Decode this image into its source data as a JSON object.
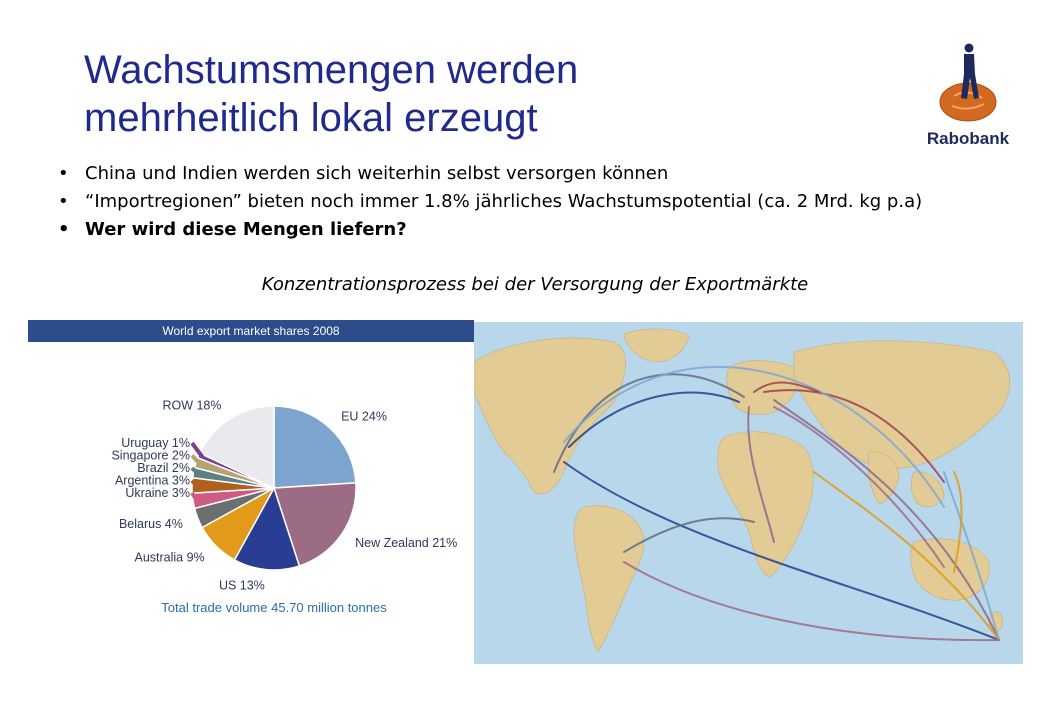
{
  "slide": {
    "title_lines": [
      "Wachstumsmengen werden",
      "mehrheitlich lokal erzeugt"
    ],
    "logo_text": "Rabobank",
    "bullets": [
      {
        "text": "China und Indien werden sich weiterhin selbst versorgen können"
      },
      {
        "text": "“Importregionen” bieten noch immer 1.8% jährliches Wachstumspotential (ca. 2 Mrd. kg p.a)"
      },
      {
        "text": "Wer wird diese Mengen liefern?"
      }
    ],
    "subline": "Konzentrationsprozess bei der Versorgung der Exportmärkte"
  },
  "chart_data": {
    "type": "pie",
    "title": "World export market shares 2008",
    "note": "Total trade volume 45.70 million tonnes",
    "unit": "%",
    "slices": [
      {
        "label": "EU",
        "value": 24,
        "display": "EU 24%",
        "color": "#7ca4cf"
      },
      {
        "label": "New Zealand",
        "value": 21,
        "display": "New Zealand 21%",
        "color": "#9c6c85"
      },
      {
        "label": "US",
        "value": 13,
        "display": "US 13%",
        "color": "#283d93"
      },
      {
        "label": "Australia",
        "value": 9,
        "display": "Australia 9%",
        "color": "#e19a19"
      },
      {
        "label": "Belarus",
        "value": 4,
        "display": "Belarus 4%",
        "color": "#6c6e70"
      },
      {
        "label": "Ukraine",
        "value": 3,
        "display": "Ukraine 3%",
        "color": "#cf5b82"
      },
      {
        "label": "Argentina",
        "value": 3,
        "display": "Argentina 3%",
        "color": "#b05f1c"
      },
      {
        "label": "Brazil",
        "value": 2,
        "display": "Brazil 2%",
        "color": "#5c8083"
      },
      {
        "label": "Singapore",
        "value": 2,
        "display": "Singapore 2%",
        "color": "#b7a273"
      },
      {
        "label": "Uruguay",
        "value": 1,
        "display": "Uruguay 1%",
        "color": "#7b3f8f"
      },
      {
        "label": "ROW",
        "value": 18,
        "display": "ROW 18%",
        "color": "#eaeaee"
      }
    ]
  },
  "map": {
    "land_color": "#e3cb95",
    "sea_color": "#b9d7ea",
    "route_colors": [
      "#8a6a8c",
      "#7aa8d6",
      "#1f3f8f",
      "#e19a19",
      "#9c6c85",
      "#5f6f80",
      "#a04050"
    ]
  }
}
